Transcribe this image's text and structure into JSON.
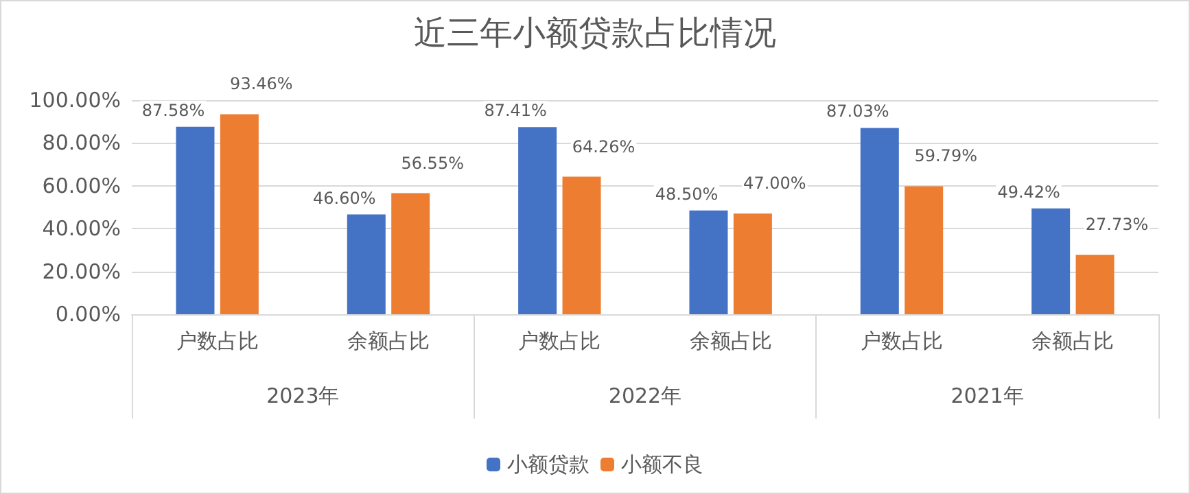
{
  "chart_data": {
    "type": "bar",
    "title": "近三年小额贷款占比情况",
    "categories": [
      "户数占比",
      "余额占比",
      "户数占比",
      "余额占比",
      "户数占比",
      "余额占比"
    ],
    "annotations": [
      "2023年",
      "2022年",
      "2021年"
    ],
    "series": [
      {
        "name": "小额贷款",
        "color": "#4472c4",
        "values": [
          87.58,
          46.6,
          87.41,
          48.5,
          87.03,
          49.42
        ],
        "value_labels": [
          "87.58%",
          "46.60%",
          "87.41%",
          "48.50%",
          "87.03%",
          "49.42%"
        ]
      },
      {
        "name": "小额不良",
        "color": "#ed7d31",
        "values": [
          93.46,
          56.55,
          64.26,
          47.0,
          59.79,
          27.73
        ],
        "value_labels": [
          "93.46%",
          "56.55%",
          "64.26%",
          "47.00%",
          "59.79%",
          "27.73%"
        ]
      }
    ],
    "ylim": [
      0,
      100
    ],
    "yticks": [
      {
        "value": 0,
        "label": "0.00%"
      },
      {
        "value": 20,
        "label": "20.00%"
      },
      {
        "value": 40,
        "label": "40.00%"
      },
      {
        "value": 60,
        "label": "60.00%"
      },
      {
        "value": 80,
        "label": "80.00%"
      },
      {
        "value": 100,
        "label": "100.00%"
      }
    ],
    "grid": "y",
    "legend": "bottom"
  }
}
